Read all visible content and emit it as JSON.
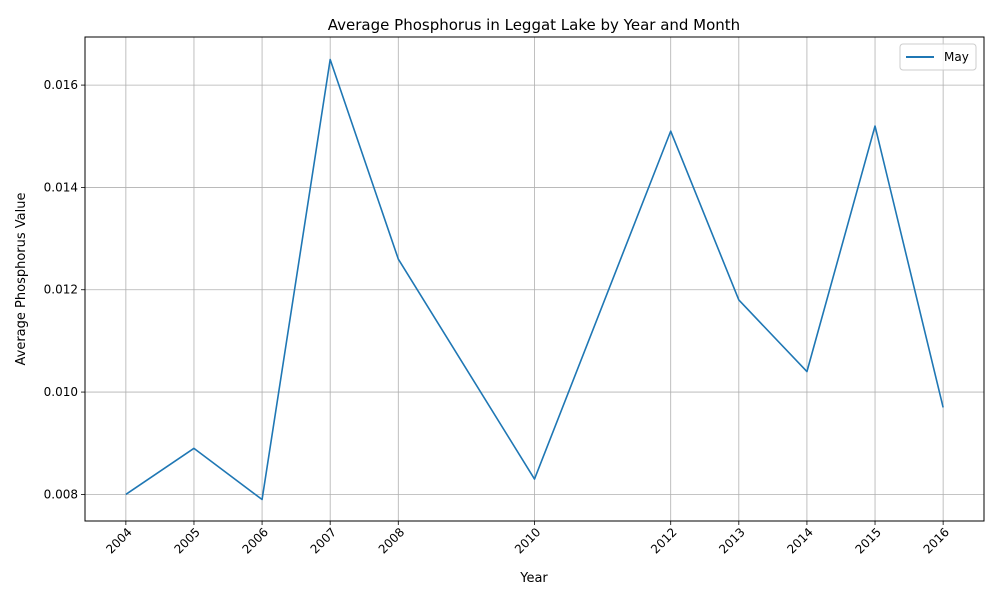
{
  "chart_data": {
    "type": "line",
    "title": "Average Phosphorus in Leggat Lake by Year and Month",
    "xlabel": "Year",
    "ylabel": "Average Phosphorus Value",
    "x": [
      2004,
      2005,
      2006,
      2007,
      2008,
      2010,
      2012,
      2013,
      2014,
      2015,
      2016
    ],
    "x_tick_labels": [
      "2004",
      "2005",
      "2006",
      "2007",
      "2008",
      "2010",
      "2012",
      "2013",
      "2014",
      "2015",
      "2016"
    ],
    "series": [
      {
        "name": "May",
        "color": "#1f77b4",
        "values": [
          0.008,
          0.0089,
          0.0079,
          0.0165,
          0.0126,
          0.0083,
          0.0151,
          0.0118,
          0.0104,
          0.0152,
          0.0097
        ]
      }
    ],
    "xlim": [
      2003.4,
      2016.6
    ],
    "ylim": [
      0.00748,
      0.01694
    ],
    "y_ticks": [
      0.008,
      0.01,
      0.012,
      0.014,
      0.016
    ],
    "y_tick_labels": [
      "0.008",
      "0.010",
      "0.012",
      "0.014",
      "0.016"
    ],
    "grid": true,
    "legend_position": "top-right"
  }
}
